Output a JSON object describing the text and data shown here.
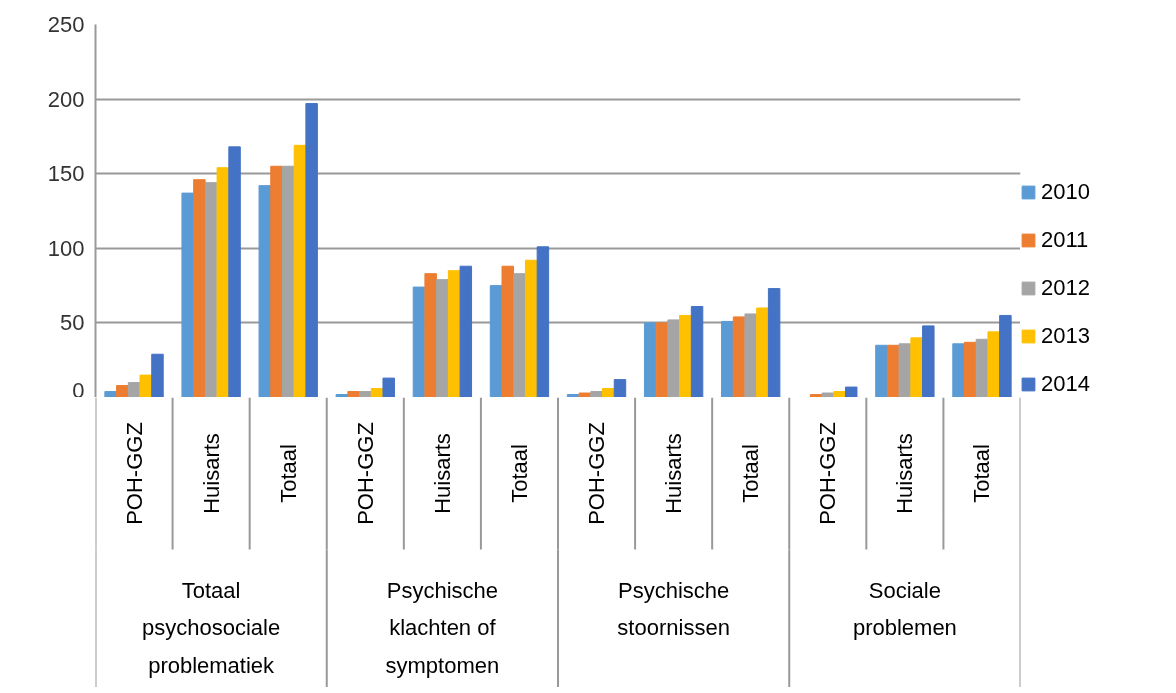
{
  "chart_data": {
    "type": "bar",
    "categories": [
      "POH-GGZ",
      "Huisarts",
      "Totaal",
      "POH-GGZ",
      "Huisarts",
      "Totaal",
      "POH-GGZ",
      "Huisarts",
      "Totaal",
      "POH-GGZ",
      "Huisarts",
      "Totaal"
    ],
    "annotations": [
      "Totaal psychosociale problematiek",
      "Psychische klachten of symptomen",
      "Psychische stoornissen",
      "Sociale problemen"
    ],
    "series": [
      {
        "name": "2010",
        "color": "#5b9bd5",
        "values": [
          4,
          137,
          142,
          2,
          74,
          75,
          2,
          50,
          51,
          0,
          35,
          36
        ]
      },
      {
        "name": "2011",
        "color": "#ed7d31",
        "values": [
          8,
          146,
          155,
          4,
          83,
          88,
          3,
          50,
          54,
          2,
          35,
          37
        ]
      },
      {
        "name": "2012",
        "color": "#a5a5a5",
        "values": [
          10,
          144,
          155,
          4,
          79,
          83,
          4,
          52,
          56,
          3,
          36,
          39
        ]
      },
      {
        "name": "2013",
        "color": "#ffc000",
        "values": [
          15,
          154,
          169,
          6,
          85,
          92,
          6,
          55,
          60,
          4,
          40,
          44
        ]
      },
      {
        "name": "2014",
        "color": "#4472c4",
        "values": [
          29,
          168,
          197,
          13,
          88,
          101,
          12,
          61,
          73,
          7,
          48,
          55
        ]
      }
    ],
    "ylim": [
      0,
      250
    ],
    "yticks": [
      0,
      50,
      100,
      150,
      200,
      250
    ],
    "grid": "y",
    "legend": "right"
  }
}
